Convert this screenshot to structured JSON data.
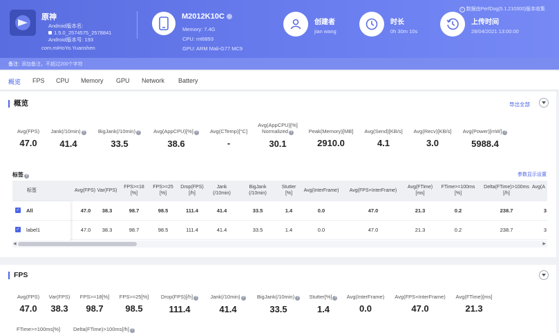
{
  "header": {
    "app": {
      "name": "原神",
      "android_version_name_label": "Android版本名:",
      "android_version_name": "1.5.0_2574575_2578841",
      "android_version_code_label": "Android版本号:",
      "android_version_code": "193",
      "package": "com.miHoYo.Yuanshen"
    },
    "device": {
      "model": "M2012K10C",
      "memory": "Memory: 7.4G",
      "cpu": "CPU: mt6893",
      "gpu": "GPU: ARM Mali-G77 MC9"
    },
    "creator": {
      "title": "创建者",
      "value": "jian wang"
    },
    "duration": {
      "title": "时长",
      "value": "0h 30m 10s"
    },
    "upload": {
      "title": "上传时间",
      "value": "28/04/2021 13:00:00"
    },
    "perfdog_note": "数据由PerfDog(5.1.210300)版本收集",
    "note_label": "备注:",
    "note_placeholder": "添加备注，不超过200个字符"
  },
  "tabs": [
    "概览",
    "FPS",
    "CPU",
    "Memory",
    "GPU",
    "Network",
    "Battery"
  ],
  "overview": {
    "title": "概览",
    "export_label": "导出全部",
    "metrics": [
      {
        "label": "Avg(FPS)",
        "value": "47.0",
        "help": false
      },
      {
        "label": "Jank(/10min)",
        "value": "41.4",
        "help": true
      },
      {
        "label": "BigJank(/10min)",
        "value": "33.5",
        "help": true
      },
      {
        "label": "Avg(AppCPU)[%]",
        "value": "38.6",
        "help": true
      },
      {
        "label": "Avg(CTemp)[°C]",
        "value": "-",
        "help": false
      },
      {
        "label": "Avg(AppCPU)[%]",
        "label2": "Normalized",
        "value": "30.1",
        "help": true
      },
      {
        "label": "Peak(Memory)[MB]",
        "value": "2910.0",
        "help": false
      },
      {
        "label": "Avg(Send)[KB/s]",
        "value": "4.1",
        "help": false
      },
      {
        "label": "Avg(Recv)[KB/s]",
        "value": "3.0",
        "help": false
      },
      {
        "label": "Avg(Power)[mW]",
        "value": "5988.4",
        "help": true
      }
    ],
    "labels_title": "标签",
    "param_settings": "参数显示设置",
    "table": {
      "columns": [
        {
          "l1": "标签",
          "l2": ""
        },
        {
          "l1": "Avg(FPS)",
          "l2": ""
        },
        {
          "l1": "Var(FPS)",
          "l2": ""
        },
        {
          "l1": "FPS>=18",
          "l2": "[%]"
        },
        {
          "l1": "FPS>=25",
          "l2": "[%]"
        },
        {
          "l1": "Drop(FPS)",
          "l2": "[/h]"
        },
        {
          "l1": "Jank",
          "l2": "(/10min)"
        },
        {
          "l1": "BigJank",
          "l2": "(/10min)"
        },
        {
          "l1": "Stutter",
          "l2": "[%]"
        },
        {
          "l1": "Avg(InterFrame)",
          "l2": ""
        },
        {
          "l1": "Avg(FPS+InterFrame)",
          "l2": ""
        },
        {
          "l1": "Avg(FTime)",
          "l2": "[ms]"
        },
        {
          "l1": "FTime>=100ms",
          "l2": "[%]"
        },
        {
          "l1": "Delta(FTime)>100ms",
          "l2": "[/h]"
        },
        {
          "l1": "Avg(A",
          "l2": ""
        }
      ],
      "rows": [
        {
          "label": "All",
          "cells": [
            "47.0",
            "38.3",
            "98.7",
            "98.5",
            "111.4",
            "41.4",
            "33.5",
            "1.4",
            "0.0",
            "47.0",
            "21.3",
            "0.2",
            "238.7",
            "3"
          ]
        },
        {
          "label": "label1",
          "cells": [
            "47.0",
            "38.3",
            "98.7",
            "98.5",
            "111.4",
            "41.4",
            "33.5",
            "1.4",
            "0.0",
            "47.0",
            "21.3",
            "0.2",
            "238.7",
            "3"
          ]
        }
      ]
    }
  },
  "fps": {
    "title": "FPS",
    "metrics": [
      {
        "label": "Avg(FPS)",
        "value": "47.0",
        "help": false
      },
      {
        "label": "Var(FPS)",
        "value": "38.3",
        "help": false
      },
      {
        "label": "FPS>=18[%]",
        "value": "98.7",
        "help": false
      },
      {
        "label": "FPS>=25[%]",
        "value": "98.5",
        "help": false
      },
      {
        "label": "Drop(FPS)[/h]",
        "value": "111.4",
        "help": true
      },
      {
        "label": "Jank(/10min)",
        "value": "41.4",
        "help": true
      },
      {
        "label": "BigJank(/10min)",
        "value": "33.5",
        "help": true
      },
      {
        "label": "Stutter[%]",
        "value": "1.4",
        "help": true
      },
      {
        "label": "Avg(InterFrame)",
        "value": "0.0",
        "help": false
      },
      {
        "label": "Avg(FPS+InterFrame)",
        "value": "47.0",
        "help": false
      },
      {
        "label": "Avg(FTime)[ms]",
        "value": "21.3",
        "help": false
      }
    ],
    "metrics_row2": [
      {
        "label": "FTime>=100ms[%]"
      },
      {
        "label": "Delta(FTime)>100ms[/h]",
        "help": true
      }
    ]
  }
}
